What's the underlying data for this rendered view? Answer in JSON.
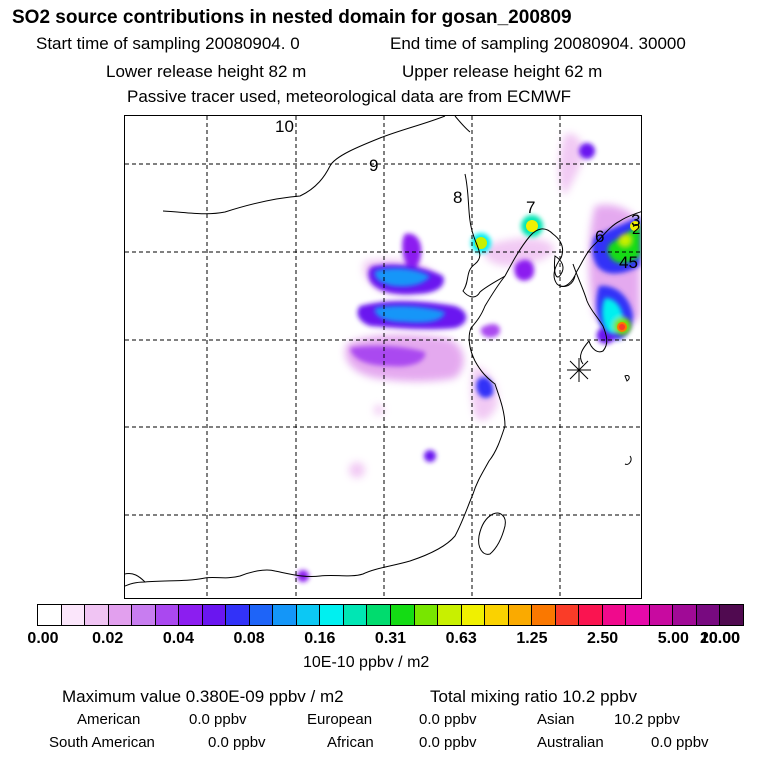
{
  "header": {
    "title": "SO2 source contributions in nested domain for gosan_200809",
    "start_time": "Start time of sampling 20080904.     0",
    "end_time": "End time of sampling 20080904. 30000",
    "lower_height": "Lower release height   82 m",
    "upper_height": "Upper release height   62 m",
    "tracer_note": "Passive tracer used, meteorological data are from ECMWF"
  },
  "map": {
    "source_labels": [
      "10",
      "9",
      "8",
      "7",
      "6",
      "3",
      "2",
      "45"
    ],
    "receptor_marker": "receptor-star",
    "colors": {
      "coast": "#000000",
      "grid": "#000000"
    }
  },
  "colorbar": {
    "colors": [
      "#ffffff",
      "#fbe6fb",
      "#f0c4f3",
      "#e2a0ee",
      "#c87df0",
      "#aa48f0",
      "#8c1ef0",
      "#6a16f0",
      "#3232f8",
      "#1e64f8",
      "#1496f8",
      "#0cc8f4",
      "#00f0f0",
      "#00e6b4",
      "#00dc6e",
      "#14dc14",
      "#78e600",
      "#c8f000",
      "#f0f000",
      "#fad200",
      "#faaa00",
      "#fa7800",
      "#fa3c28",
      "#fa1450",
      "#f00a8c",
      "#e60aaa",
      "#c80aa0",
      "#a00a96",
      "#780a80",
      "#500a50"
    ],
    "tick_labels": [
      "0.00",
      "0.02",
      "0.04",
      "0.08",
      "0.16",
      "0.31",
      "0.63",
      "1.25",
      "2.50",
      "5.00",
      "10.00",
      "20.00"
    ],
    "units": "10E-10 ppbv / m2"
  },
  "summary": {
    "max_value": "Maximum value  0.380E-09 ppbv / m2",
    "total_mixing": "Total mixing ratio       10.2 ppbv",
    "regions": [
      {
        "name": "American",
        "value": "0.0 ppbv"
      },
      {
        "name": "European",
        "value": "0.0 ppbv"
      },
      {
        "name": "Asian",
        "value": "10.2 ppbv"
      },
      {
        "name": "South American",
        "value": "0.0 ppbv"
      },
      {
        "name": "African",
        "value": "0.0 ppbv"
      },
      {
        "name": "Australian",
        "value": "0.0 ppbv"
      }
    ]
  }
}
